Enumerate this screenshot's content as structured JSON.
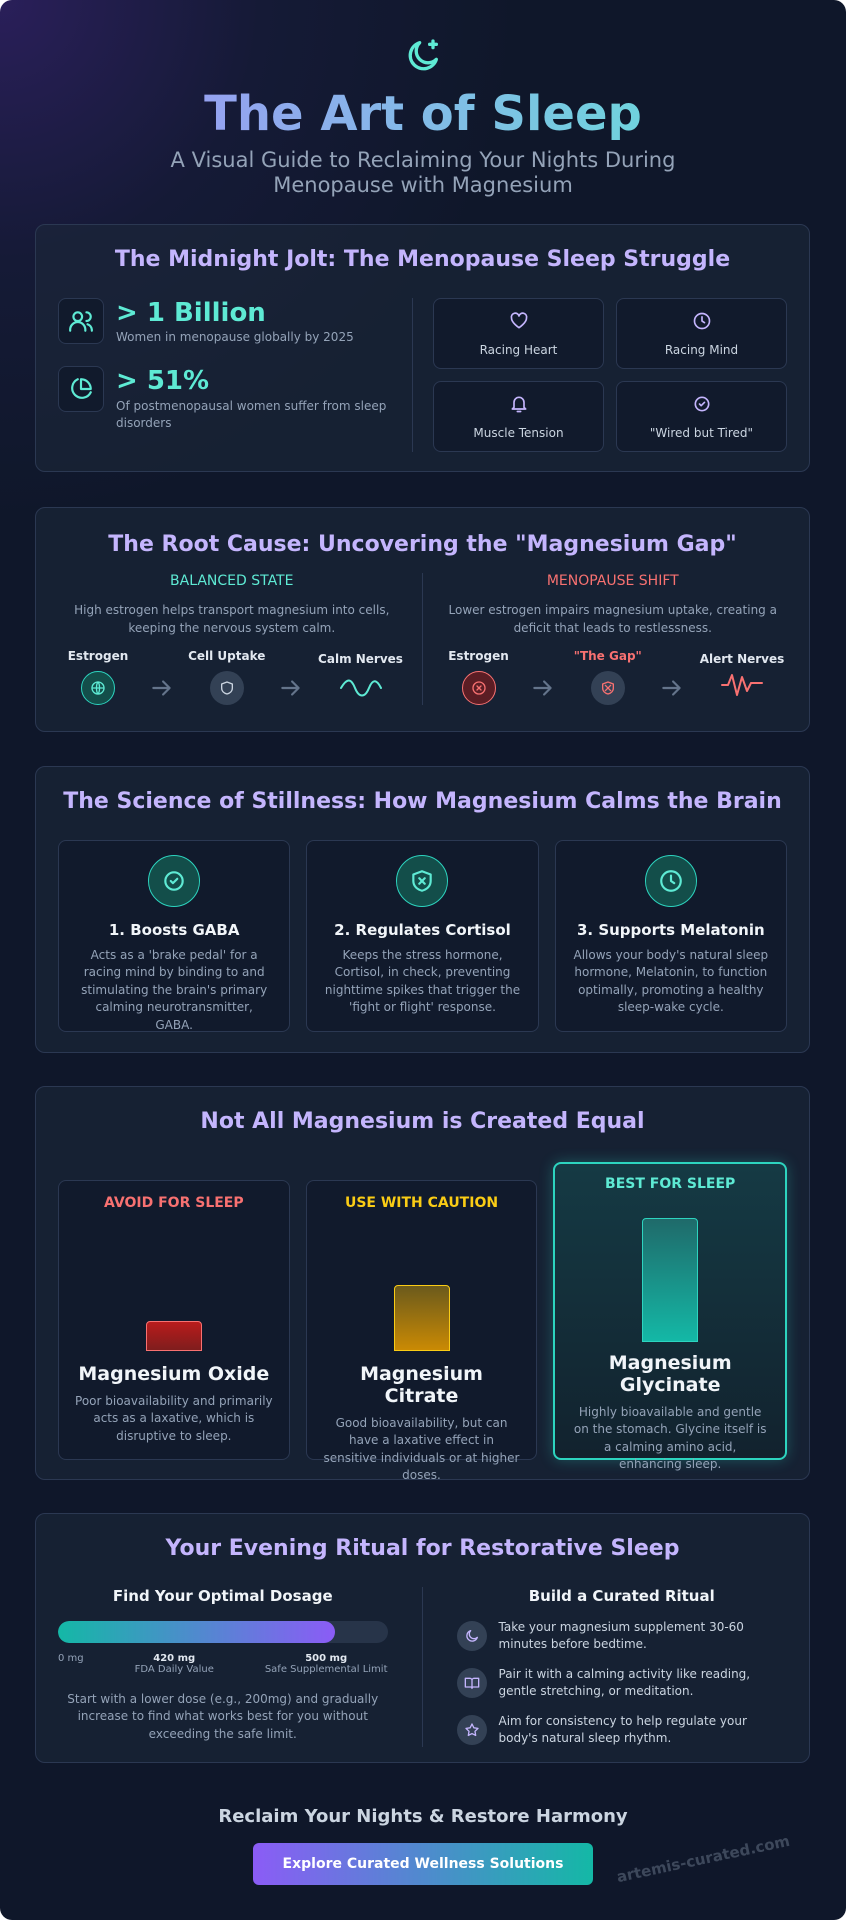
{
  "header": {
    "title": "The Art of Sleep",
    "subtitle": "A Visual Guide to Reclaiming Your Nights During Menopause with Magnesium"
  },
  "struggle": {
    "title": "The Midnight Jolt: The Menopause Sleep Struggle",
    "stats": [
      {
        "value": "> 1 Billion",
        "label": "Women in menopause globally by 2025"
      },
      {
        "value": "> 51%",
        "label": "Of postmenopausal women suffer from sleep disorders"
      }
    ],
    "symptoms": [
      "Racing Heart",
      "Racing Mind",
      "Muscle Tension",
      "\"Wired but Tired\""
    ]
  },
  "root_cause": {
    "title": "The Root Cause: Uncovering the \"Magnesium Gap\"",
    "states": [
      {
        "heading": "BALANCED STATE",
        "text": "High estrogen helps transport magnesium into cells, keeping the nervous system calm.",
        "steps": [
          "Estrogen",
          "Cell Uptake",
          "Calm Nerves"
        ]
      },
      {
        "heading": "MENOPAUSE SHIFT",
        "text": "Lower estrogen impairs magnesium uptake, creating a deficit that leads to restlessness.",
        "steps": [
          "Estrogen",
          "\"The Gap\"",
          "Alert Nerves"
        ]
      }
    ]
  },
  "science": {
    "title": "The Science of Stillness: How Magnesium Calms the Brain",
    "cards": [
      {
        "title": "1. Boosts GABA",
        "text": "Acts as a 'brake pedal' for a racing mind by binding to and stimulating the brain's primary calming neurotransmitter, GABA."
      },
      {
        "title": "2. Regulates Cortisol",
        "text": "Keeps the stress hormone, Cortisol, in check, preventing nighttime spikes that trigger the 'fight or flight' response."
      },
      {
        "title": "3. Supports Melatonin",
        "text": "Allows your body's natural sleep hormone, Melatonin, to function optimally, promoting a healthy sleep-wake cycle."
      }
    ]
  },
  "forms": {
    "title": "Not All Magnesium is Created Equal",
    "cards": [
      {
        "tag": "AVOID FOR SLEEP",
        "name": "Magnesium Oxide",
        "text": "Poor bioavailability and primarily acts as a laxative, which is disruptive to sleep."
      },
      {
        "tag": "USE WITH CAUTION",
        "name": "Magnesium Citrate",
        "text": "Good bioavailability, but can have a laxative effect in sensitive individuals or at higher doses."
      },
      {
        "tag": "BEST FOR SLEEP",
        "name": "Magnesium Glycinate",
        "text": "Highly bioavailable and gentle on the stomach. Glycine itself is a calming amino acid, enhancing sleep."
      }
    ]
  },
  "ritual": {
    "title": "Your Evening Ritual for Restorative Sleep",
    "dosage": {
      "heading": "Find Your Optimal Dosage",
      "scale": [
        {
          "value": 0,
          "label": "0 mg"
        },
        {
          "value": 420,
          "label": "420 mg",
          "note": "FDA Daily Value"
        },
        {
          "value": 500,
          "label": "500 mg",
          "note": "Safe Supplemental Limit"
        }
      ],
      "text": "Start with a lower dose (e.g., 200mg) and gradually increase to find what works best for you without exceeding the safe limit."
    },
    "steps": {
      "heading": "Build a Curated Ritual",
      "items": [
        "Take your magnesium supplement 30-60 minutes before bedtime.",
        "Pair it with a calming activity like reading, gentle stretching, or meditation.",
        "Aim for consistency to help regulate your body's natural sleep rhythm."
      ]
    }
  },
  "footer": {
    "heading": "Reclaim Your Nights & Restore Harmony",
    "button": "Explore Curated Wellness Solutions",
    "watermark": "artemis-curated.com"
  }
}
